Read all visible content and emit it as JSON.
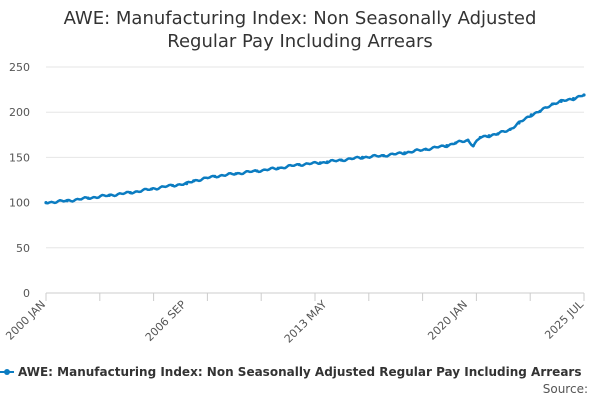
{
  "chart_data": {
    "type": "line",
    "title_lines": [
      "AWE: Manufacturing Index: Non Seasonally Adjusted",
      "Regular Pay Including Arrears"
    ],
    "xlabel": "",
    "ylabel": "",
    "ylim": [
      0,
      250
    ],
    "y_ticks": [
      0,
      50,
      100,
      150,
      200,
      250
    ],
    "x_tick_labels": [
      "2000 JAN",
      "2006 SEP",
      "2013 MAY",
      "2020 JAN",
      "2025 JUL"
    ],
    "x_range": [
      "2000-01",
      "2025-07"
    ],
    "grid": "horizontal",
    "legend_position": "bottom",
    "color": "#0b7cc1",
    "series": [
      {
        "name": "AWE: Manufacturing Index: Non Seasonally Adjusted Regular Pay Including Arrears",
        "points": [
          [
            "2000-01",
            100
          ],
          [
            "2001-01",
            102
          ],
          [
            "2002-01",
            105
          ],
          [
            "2003-01",
            108
          ],
          [
            "2004-01",
            111
          ],
          [
            "2005-01",
            115
          ],
          [
            "2006-01",
            119
          ],
          [
            "2006-09",
            121
          ],
          [
            "2007-01",
            124
          ],
          [
            "2008-01",
            129
          ],
          [
            "2009-01",
            132
          ],
          [
            "2010-01",
            135
          ],
          [
            "2011-01",
            138
          ],
          [
            "2012-01",
            142
          ],
          [
            "2013-01",
            144
          ],
          [
            "2013-05",
            145
          ],
          [
            "2014-01",
            147
          ],
          [
            "2015-01",
            150
          ],
          [
            "2016-01",
            152
          ],
          [
            "2017-01",
            155
          ],
          [
            "2018-01",
            159
          ],
          [
            "2019-01",
            163
          ],
          [
            "2019-06",
            166
          ],
          [
            "2020-01",
            169
          ],
          [
            "2020-04",
            163
          ],
          [
            "2020-08",
            172
          ],
          [
            "2021-01",
            174
          ],
          [
            "2021-06",
            176
          ],
          [
            "2022-01",
            181
          ],
          [
            "2022-06",
            188
          ],
          [
            "2023-01",
            197
          ],
          [
            "2023-06",
            201
          ],
          [
            "2024-01",
            209
          ],
          [
            "2024-06",
            212
          ],
          [
            "2025-01",
            215
          ],
          [
            "2025-07",
            219
          ]
        ]
      }
    ]
  },
  "legend": {
    "label": "AWE: Manufacturing Index: Non Seasonally Adjusted Regular Pay Including Arrears"
  },
  "source": {
    "label": "Source:"
  }
}
